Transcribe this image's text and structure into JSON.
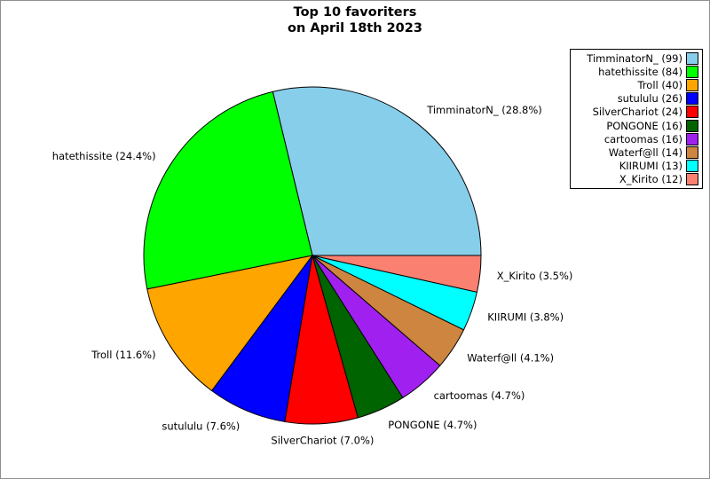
{
  "figure": {
    "title_line1": "Top 10 favoriters",
    "title_line2": "on April 18th 2023",
    "background": "#ffffff",
    "border_color": "#909090"
  },
  "chart_data": {
    "type": "pie",
    "title": "Top 10 favoriters on April 18th 2023",
    "total": 344,
    "start_angle_deg": 0,
    "direction": "counterclockwise",
    "label_distance": 1.1,
    "grid": false,
    "legend_position": "top-right",
    "legend_marker_side": "right",
    "slices": [
      {
        "name": "TimminatorN_",
        "count": 99,
        "percent": 28.8,
        "color": "#87CEEB"
      },
      {
        "name": "hatethissite",
        "count": 84,
        "percent": 24.4,
        "color": "#00FF00"
      },
      {
        "name": "Troll",
        "count": 40,
        "percent": 11.6,
        "color": "#FFA500"
      },
      {
        "name": "sutululu",
        "count": 26,
        "percent": 7.6,
        "color": "#0000FF"
      },
      {
        "name": "SilverChariot",
        "count": 24,
        "percent": 7.0,
        "color": "#FF0000"
      },
      {
        "name": "PONGONE",
        "count": 16,
        "percent": 4.7,
        "color": "#006400"
      },
      {
        "name": "cartoomas",
        "count": 16,
        "percent": 4.7,
        "color": "#A020F0"
      },
      {
        "name": "Waterf@ll",
        "count": 14,
        "percent": 4.1,
        "color": "#CD853F"
      },
      {
        "name": "KIIRUMI",
        "count": 13,
        "percent": 3.8,
        "color": "#00FFFF"
      },
      {
        "name": "X_Kirito",
        "count": 12,
        "percent": 3.5,
        "color": "#FA8072"
      }
    ],
    "slice_labels": [
      "TimminatorN_ (28.8%)",
      "hatethissite (24.4%)",
      "Troll (11.6%)",
      "sutululu (7.6%)",
      "SilverChariot (7.0%)",
      "PONGONE (4.7%)",
      "cartoomas (4.7%)",
      "Waterf@ll (4.1%)",
      "KIIRUMI (3.8%)",
      "X_Kirito (3.5%)"
    ],
    "legend_labels": [
      "TimminatorN_ (99)",
      "hatethissite (84)",
      "Troll (40)",
      "sutululu (26)",
      "SilverChariot (24)",
      "PONGONE (16)",
      "cartoomas (16)",
      "Waterf@ll (14)",
      "KIIRUMI (13)",
      "X_Kirito (12)"
    ]
  }
}
